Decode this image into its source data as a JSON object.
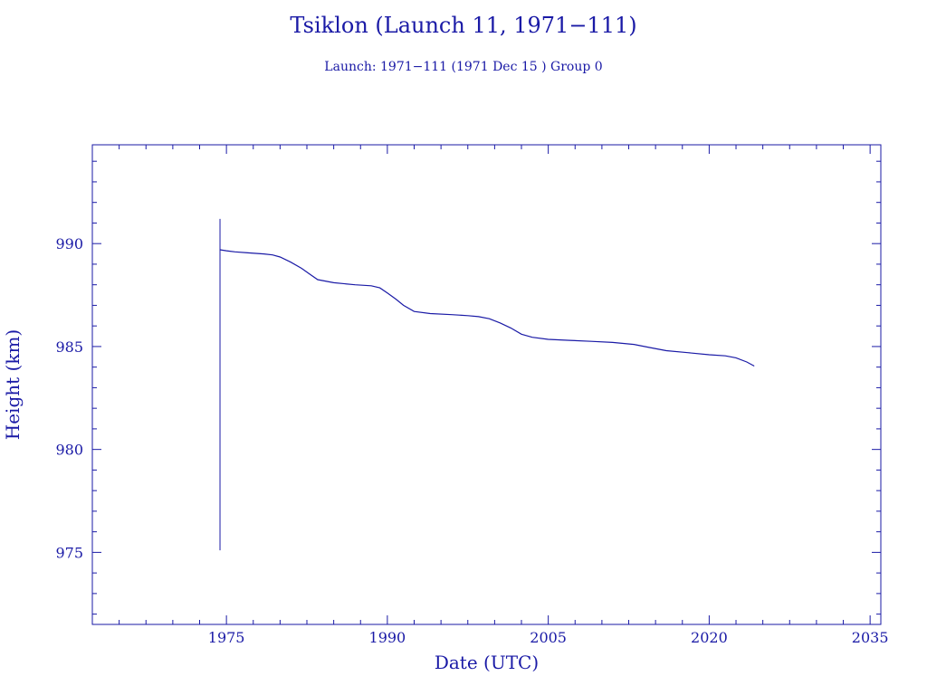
{
  "chart_data": {
    "type": "line",
    "title": "Tsiklon (Launch 11, 1971−111)",
    "subtitle": "Launch: 1971−111  (1971 Dec 15 )  Group 0",
    "xlabel": "Date (UTC)",
    "ylabel": "Height (km)",
    "xlim": [
      1962.5,
      2036
    ],
    "ylim": [
      971.5,
      994.8
    ],
    "xticks": [
      1975,
      1990,
      2005,
      2020,
      2035
    ],
    "yticks": [
      975,
      980,
      985,
      990
    ],
    "colors": {
      "line": "#1a1aa6",
      "axes": "#1a1aa6"
    },
    "spike": {
      "x": 1974.4,
      "y_low": 975.1,
      "y_high": 991.2
    },
    "series": [
      {
        "x": [
          1974.4,
          1975.0,
          1975.8,
          1977.0,
          1978.5,
          1979.3,
          1980.0,
          1981.0,
          1982.0,
          1982.8,
          1983.5,
          1985.0,
          1987.0,
          1988.5,
          1989.3,
          1990.0,
          1990.8,
          1991.5,
          1992.5,
          1994.0,
          1996.0,
          1997.5,
          1998.5,
          1999.5,
          2000.5,
          2001.5,
          2002.5,
          2003.5,
          2005.0,
          2007.0,
          2009.0,
          2011.0,
          2013.0,
          2014.5,
          2016.0,
          2018.0,
          2020.0,
          2021.5,
          2022.5,
          2023.5,
          2024.2
        ],
        "y": [
          989.7,
          989.65,
          989.6,
          989.55,
          989.5,
          989.45,
          989.35,
          989.1,
          988.8,
          988.5,
          988.25,
          988.1,
          988.0,
          987.95,
          987.85,
          987.6,
          987.3,
          987.0,
          986.7,
          986.6,
          986.55,
          986.5,
          986.45,
          986.35,
          986.15,
          985.9,
          985.6,
          985.45,
          985.35,
          985.3,
          985.25,
          985.2,
          985.1,
          984.95,
          984.8,
          984.7,
          984.6,
          984.55,
          984.45,
          984.25,
          984.05
        ]
      }
    ]
  }
}
